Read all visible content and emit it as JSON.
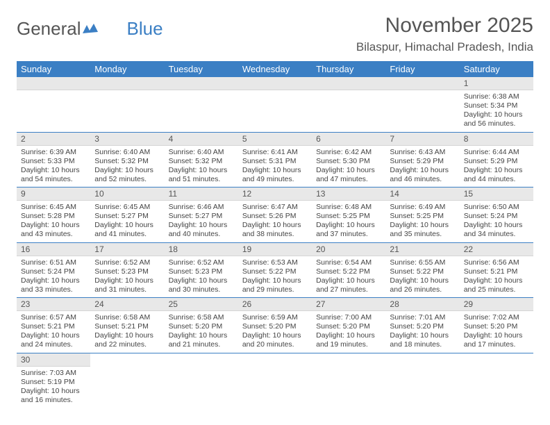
{
  "logo": {
    "text1": "General",
    "text2": "Blue"
  },
  "title": "November 2025",
  "location": "Bilaspur, Himachal Pradesh, India",
  "colors": {
    "header_bg": "#3b7fc4",
    "daynum_bg": "#e8e8e8",
    "text": "#555555",
    "rule": "#3b7fc4"
  },
  "weekdays": [
    "Sunday",
    "Monday",
    "Tuesday",
    "Wednesday",
    "Thursday",
    "Friday",
    "Saturday"
  ],
  "grid": [
    [
      {
        "blank": true
      },
      {
        "blank": true
      },
      {
        "blank": true
      },
      {
        "blank": true
      },
      {
        "blank": true
      },
      {
        "blank": true
      },
      {
        "n": "1",
        "sunrise": "Sunrise: 6:38 AM",
        "sunset": "Sunset: 5:34 PM",
        "day1": "Daylight: 10 hours",
        "day2": "and 56 minutes."
      }
    ],
    [
      {
        "n": "2",
        "sunrise": "Sunrise: 6:39 AM",
        "sunset": "Sunset: 5:33 PM",
        "day1": "Daylight: 10 hours",
        "day2": "and 54 minutes."
      },
      {
        "n": "3",
        "sunrise": "Sunrise: 6:40 AM",
        "sunset": "Sunset: 5:32 PM",
        "day1": "Daylight: 10 hours",
        "day2": "and 52 minutes."
      },
      {
        "n": "4",
        "sunrise": "Sunrise: 6:40 AM",
        "sunset": "Sunset: 5:32 PM",
        "day1": "Daylight: 10 hours",
        "day2": "and 51 minutes."
      },
      {
        "n": "5",
        "sunrise": "Sunrise: 6:41 AM",
        "sunset": "Sunset: 5:31 PM",
        "day1": "Daylight: 10 hours",
        "day2": "and 49 minutes."
      },
      {
        "n": "6",
        "sunrise": "Sunrise: 6:42 AM",
        "sunset": "Sunset: 5:30 PM",
        "day1": "Daylight: 10 hours",
        "day2": "and 47 minutes."
      },
      {
        "n": "7",
        "sunrise": "Sunrise: 6:43 AM",
        "sunset": "Sunset: 5:29 PM",
        "day1": "Daylight: 10 hours",
        "day2": "and 46 minutes."
      },
      {
        "n": "8",
        "sunrise": "Sunrise: 6:44 AM",
        "sunset": "Sunset: 5:29 PM",
        "day1": "Daylight: 10 hours",
        "day2": "and 44 minutes."
      }
    ],
    [
      {
        "n": "9",
        "sunrise": "Sunrise: 6:45 AM",
        "sunset": "Sunset: 5:28 PM",
        "day1": "Daylight: 10 hours",
        "day2": "and 43 minutes."
      },
      {
        "n": "10",
        "sunrise": "Sunrise: 6:45 AM",
        "sunset": "Sunset: 5:27 PM",
        "day1": "Daylight: 10 hours",
        "day2": "and 41 minutes."
      },
      {
        "n": "11",
        "sunrise": "Sunrise: 6:46 AM",
        "sunset": "Sunset: 5:27 PM",
        "day1": "Daylight: 10 hours",
        "day2": "and 40 minutes."
      },
      {
        "n": "12",
        "sunrise": "Sunrise: 6:47 AM",
        "sunset": "Sunset: 5:26 PM",
        "day1": "Daylight: 10 hours",
        "day2": "and 38 minutes."
      },
      {
        "n": "13",
        "sunrise": "Sunrise: 6:48 AM",
        "sunset": "Sunset: 5:25 PM",
        "day1": "Daylight: 10 hours",
        "day2": "and 37 minutes."
      },
      {
        "n": "14",
        "sunrise": "Sunrise: 6:49 AM",
        "sunset": "Sunset: 5:25 PM",
        "day1": "Daylight: 10 hours",
        "day2": "and 35 minutes."
      },
      {
        "n": "15",
        "sunrise": "Sunrise: 6:50 AM",
        "sunset": "Sunset: 5:24 PM",
        "day1": "Daylight: 10 hours",
        "day2": "and 34 minutes."
      }
    ],
    [
      {
        "n": "16",
        "sunrise": "Sunrise: 6:51 AM",
        "sunset": "Sunset: 5:24 PM",
        "day1": "Daylight: 10 hours",
        "day2": "and 33 minutes."
      },
      {
        "n": "17",
        "sunrise": "Sunrise: 6:52 AM",
        "sunset": "Sunset: 5:23 PM",
        "day1": "Daylight: 10 hours",
        "day2": "and 31 minutes."
      },
      {
        "n": "18",
        "sunrise": "Sunrise: 6:52 AM",
        "sunset": "Sunset: 5:23 PM",
        "day1": "Daylight: 10 hours",
        "day2": "and 30 minutes."
      },
      {
        "n": "19",
        "sunrise": "Sunrise: 6:53 AM",
        "sunset": "Sunset: 5:22 PM",
        "day1": "Daylight: 10 hours",
        "day2": "and 29 minutes."
      },
      {
        "n": "20",
        "sunrise": "Sunrise: 6:54 AM",
        "sunset": "Sunset: 5:22 PM",
        "day1": "Daylight: 10 hours",
        "day2": "and 27 minutes."
      },
      {
        "n": "21",
        "sunrise": "Sunrise: 6:55 AM",
        "sunset": "Sunset: 5:22 PM",
        "day1": "Daylight: 10 hours",
        "day2": "and 26 minutes."
      },
      {
        "n": "22",
        "sunrise": "Sunrise: 6:56 AM",
        "sunset": "Sunset: 5:21 PM",
        "day1": "Daylight: 10 hours",
        "day2": "and 25 minutes."
      }
    ],
    [
      {
        "n": "23",
        "sunrise": "Sunrise: 6:57 AM",
        "sunset": "Sunset: 5:21 PM",
        "day1": "Daylight: 10 hours",
        "day2": "and 24 minutes."
      },
      {
        "n": "24",
        "sunrise": "Sunrise: 6:58 AM",
        "sunset": "Sunset: 5:21 PM",
        "day1": "Daylight: 10 hours",
        "day2": "and 22 minutes."
      },
      {
        "n": "25",
        "sunrise": "Sunrise: 6:58 AM",
        "sunset": "Sunset: 5:20 PM",
        "day1": "Daylight: 10 hours",
        "day2": "and 21 minutes."
      },
      {
        "n": "26",
        "sunrise": "Sunrise: 6:59 AM",
        "sunset": "Sunset: 5:20 PM",
        "day1": "Daylight: 10 hours",
        "day2": "and 20 minutes."
      },
      {
        "n": "27",
        "sunrise": "Sunrise: 7:00 AM",
        "sunset": "Sunset: 5:20 PM",
        "day1": "Daylight: 10 hours",
        "day2": "and 19 minutes."
      },
      {
        "n": "28",
        "sunrise": "Sunrise: 7:01 AM",
        "sunset": "Sunset: 5:20 PM",
        "day1": "Daylight: 10 hours",
        "day2": "and 18 minutes."
      },
      {
        "n": "29",
        "sunrise": "Sunrise: 7:02 AM",
        "sunset": "Sunset: 5:20 PM",
        "day1": "Daylight: 10 hours",
        "day2": "and 17 minutes."
      }
    ],
    [
      {
        "n": "30",
        "sunrise": "Sunrise: 7:03 AM",
        "sunset": "Sunset: 5:19 PM",
        "day1": "Daylight: 10 hours",
        "day2": "and 16 minutes."
      },
      {
        "blank": true
      },
      {
        "blank": true
      },
      {
        "blank": true
      },
      {
        "blank": true
      },
      {
        "blank": true
      },
      {
        "blank": true
      }
    ]
  ]
}
